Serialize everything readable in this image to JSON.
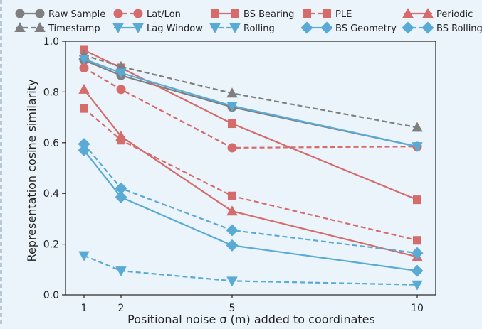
{
  "chart_data": {
    "type": "line",
    "xlabel": "Positional noise σ (m) added to coordinates",
    "ylabel": "Representation cosine similarity",
    "x": [
      1,
      2,
      5,
      10
    ],
    "xticks": [
      1,
      2,
      5,
      10
    ],
    "xlim": [
      0.5,
      10.5
    ],
    "ylim": [
      0,
      1.0
    ],
    "yticks": [
      "0.0",
      "0.2",
      "0.4",
      "0.6",
      "0.8",
      "1.0"
    ],
    "legend_position": "top",
    "grid": false,
    "series": [
      {
        "name": "Raw Sample",
        "color": "#7f7f7f",
        "dash": "solid",
        "marker": "circle",
        "values": [
          0.925,
          0.865,
          0.74,
          0.585
        ]
      },
      {
        "name": "Lat/Lon",
        "color": "#d56b6b",
        "dash": "dashed",
        "marker": "circle",
        "values": [
          0.895,
          0.81,
          0.58,
          0.585
        ]
      },
      {
        "name": "BS Bearing",
        "color": "#d56b6b",
        "dash": "solid",
        "marker": "square",
        "values": [
          0.965,
          0.895,
          0.675,
          0.375
        ]
      },
      {
        "name": "PLE",
        "color": "#d56b6b",
        "dash": "dashed",
        "marker": "square",
        "values": [
          0.735,
          0.61,
          0.39,
          0.215
        ]
      },
      {
        "name": "Periodic",
        "color": "#d56b6b",
        "dash": "solid",
        "marker": "triangle-up",
        "values": [
          0.81,
          0.625,
          0.33,
          0.15
        ]
      },
      {
        "name": "Timestamp",
        "color": "#7f7f7f",
        "dash": "dashed",
        "marker": "triangle-up",
        "values": [
          0.945,
          0.9,
          0.795,
          0.66
        ]
      },
      {
        "name": "Lag Window",
        "color": "#5aaad6",
        "dash": "solid",
        "marker": "triangle-down",
        "values": [
          0.93,
          0.875,
          0.745,
          0.585
        ]
      },
      {
        "name": "Rolling",
        "color": "#5aaad6",
        "dash": "dashed",
        "marker": "triangle-down",
        "values": [
          0.155,
          0.095,
          0.055,
          0.04
        ]
      },
      {
        "name": "BS Geometry",
        "color": "#5aaad6",
        "dash": "solid",
        "marker": "diamond",
        "values": [
          0.57,
          0.385,
          0.195,
          0.095
        ]
      },
      {
        "name": "BS Rolling",
        "color": "#5aaad6",
        "dash": "dashed",
        "marker": "diamond",
        "values": [
          0.595,
          0.42,
          0.255,
          0.165
        ]
      }
    ]
  }
}
